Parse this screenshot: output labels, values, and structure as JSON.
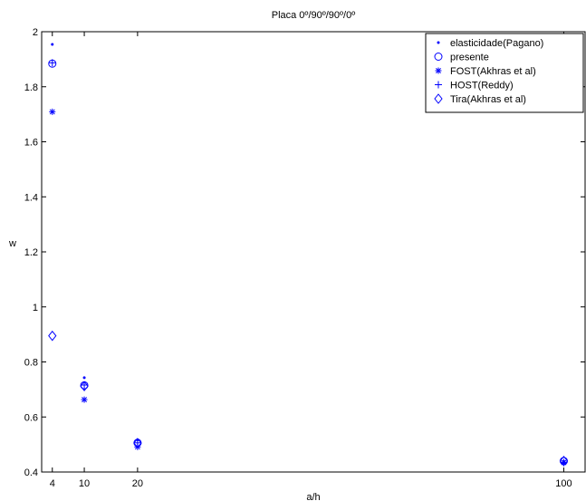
{
  "chart_data": {
    "type": "scatter",
    "title": "Placa 0º/90º/90º/0º",
    "xlabel": "a/h",
    "ylabel": "w",
    "xlim": [
      2,
      104
    ],
    "ylim": [
      0.4,
      2.0
    ],
    "x_ticks": [
      "4",
      "10",
      "20",
      "100"
    ],
    "x_tick_values": [
      4,
      10,
      20,
      100
    ],
    "y_ticks": [
      "0.4",
      "0.6",
      "0.8",
      "1",
      "1.2",
      "1.4",
      "1.6",
      "1.8",
      "2"
    ],
    "y_tick_values": [
      0.4,
      0.6,
      0.8,
      1.0,
      1.2,
      1.4,
      1.6,
      1.8,
      2.0
    ],
    "grid": false,
    "legend_position": "top-right",
    "color": "#0000ff",
    "series": [
      {
        "name": "elasticidade(Pagano)",
        "marker": "dot",
        "x": [
          4,
          10,
          20,
          100
        ],
        "y": [
          1.954,
          0.743,
          0.517,
          0.439
        ]
      },
      {
        "name": "presente",
        "marker": "circle",
        "x": [
          4,
          10,
          20,
          100
        ],
        "y": [
          1.884,
          0.715,
          0.506,
          0.44
        ]
      },
      {
        "name": "FOST(Akhras et al)",
        "marker": "asterisk",
        "x": [
          4,
          10,
          20,
          100
        ],
        "y": [
          1.709,
          0.663,
          0.491,
          0.434
        ]
      },
      {
        "name": "HOST(Reddy)",
        "marker": "plus",
        "x": [
          4,
          10,
          20,
          100
        ],
        "y": [
          1.887,
          0.716,
          0.506,
          0.434
        ]
      },
      {
        "name": "Tira(Akhras et al)",
        "marker": "diamond",
        "x": [
          4,
          10,
          20,
          100
        ],
        "y": [
          0.895,
          0.712,
          0.505,
          0.44
        ]
      }
    ]
  }
}
